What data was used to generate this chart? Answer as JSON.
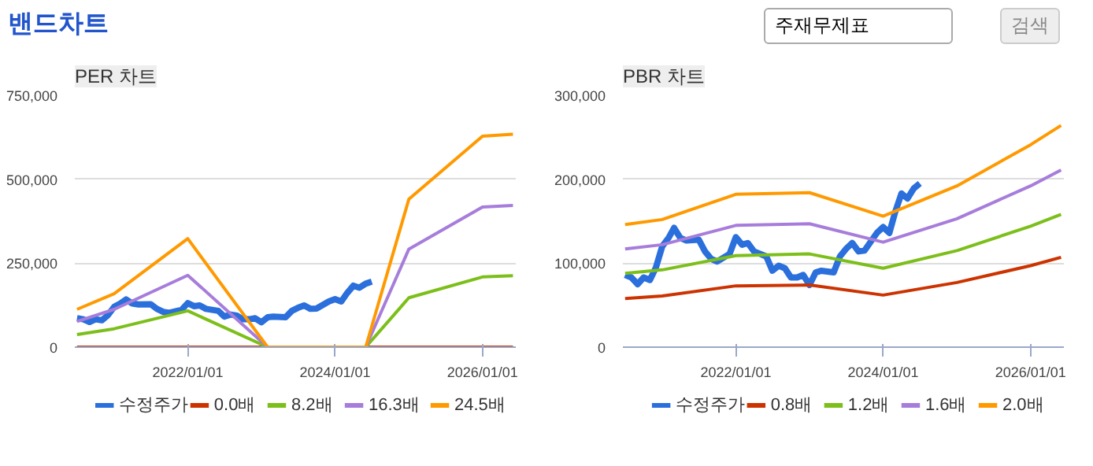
{
  "chart_data": [
    {
      "type": "other",
      "title": "밴드차트",
      "annotations": [
        "주재무제표",
        "검색"
      ]
    },
    {
      "type": "line",
      "title": "PER 차트",
      "xlim": [
        "2020-06-20",
        "2026-06-15"
      ],
      "ylim": [
        0,
        750000
      ],
      "xticks": [
        {
          "value": "2022-01-01",
          "label": "2022/01/01"
        },
        {
          "value": "2024-01-01",
          "label": "2024/01/01"
        },
        {
          "value": "2026-01-01",
          "label": "2026/01/01"
        }
      ],
      "yticks": [
        {
          "value": 0,
          "label": "0"
        },
        {
          "value": 250000,
          "label": "250,000"
        },
        {
          "value": 500000,
          "label": "500,000"
        },
        {
          "value": 750000,
          "label": "750,000"
        }
      ],
      "grid": "y",
      "legend": "bottom",
      "marker": "none",
      "line_style": "solid",
      "series": [
        {
          "name": "수정주가",
          "color": "#2a6fdb",
          "x": [
            "2020-07",
            "2020-08",
            "2020-09",
            "2020-10",
            "2020-11",
            "2020-12",
            "2021-01",
            "2021-02",
            "2021-03",
            "2021-04",
            "2021-05",
            "2021-07",
            "2021-08",
            "2021-09",
            "2021-10",
            "2021-12",
            "2022-01",
            "2022-02",
            "2022-03",
            "2022-04",
            "2022-06",
            "2022-07",
            "2022-08",
            "2022-09",
            "2022-10",
            "2022-11",
            "2022-12",
            "2023-01",
            "2023-02",
            "2023-03",
            "2023-05",
            "2023-06",
            "2023-07",
            "2023-08",
            "2023-09",
            "2023-10",
            "2023-12",
            "2024-01",
            "2024-02",
            "2024-03",
            "2024-04",
            "2024-05",
            "2024-06",
            "2024-07"
          ],
          "values": [
            86000,
            83000,
            75000,
            83000,
            80000,
            95000,
            120000,
            130000,
            142000,
            130000,
            127000,
            128000,
            114000,
            105000,
            102000,
            111000,
            131000,
            122000,
            124000,
            114000,
            108000,
            91000,
            97000,
            94000,
            83000,
            83000,
            86000,
            74000,
            89000,
            91000,
            89000,
            108000,
            117000,
            124000,
            114000,
            115000,
            136000,
            143000,
            136000,
            161000,
            183000,
            177000,
            189000,
            195000
          ]
        },
        {
          "name": "0.0배",
          "color": "#cc3300",
          "x": [
            "2020-07",
            "2021-01",
            "2022-01",
            "2023-02",
            "2024-06",
            "2025-01",
            "2026-01",
            "2026-06"
          ],
          "values": [
            0,
            0,
            0,
            0,
            0,
            0,
            0,
            0
          ]
        },
        {
          "name": "8.2배",
          "color": "#7cbf1a",
          "x": [
            "2020-07",
            "2021-01",
            "2022-01",
            "2023-02",
            "2024-06",
            "2025-01",
            "2026-01",
            "2026-06"
          ],
          "values": [
            37500,
            54700,
            108000,
            0,
            0,
            147000,
            209000,
            212500
          ]
        },
        {
          "name": "16.3배",
          "color": "#a77ddb",
          "x": [
            "2020-07",
            "2021-01",
            "2022-01",
            "2023-02",
            "2024-06",
            "2025-01",
            "2026-01",
            "2026-06"
          ],
          "values": [
            76600,
            112500,
            214000,
            0,
            0,
            292000,
            417000,
            422000
          ]
        },
        {
          "name": "24.5배",
          "color": "#ff9900",
          "x": [
            "2020-07",
            "2021-01",
            "2022-01",
            "2023-02",
            "2024-06",
            "2025-01",
            "2026-01",
            "2026-06"
          ],
          "values": [
            112500,
            159000,
            323000,
            0,
            0,
            440600,
            628000,
            634000
          ]
        }
      ]
    },
    {
      "type": "line",
      "title": "PBR 차트",
      "xlim": [
        "2020-06-20",
        "2026-06-15"
      ],
      "ylim": [
        0,
        300000
      ],
      "xticks": [
        {
          "value": "2022-01-01",
          "label": "2022/01/01"
        },
        {
          "value": "2024-01-01",
          "label": "2024/01/01"
        },
        {
          "value": "2026-01-01",
          "label": "2026/01/01"
        }
      ],
      "yticks": [
        {
          "value": 0,
          "label": "0"
        },
        {
          "value": 100000,
          "label": "100,000"
        },
        {
          "value": 200000,
          "label": "200,000"
        },
        {
          "value": 300000,
          "label": "300,000"
        }
      ],
      "grid": "y",
      "legend": "bottom",
      "marker": "none",
      "line_style": "solid",
      "series": [
        {
          "name": "수정주가",
          "color": "#2a6fdb",
          "x": [
            "2020-07",
            "2020-08",
            "2020-09",
            "2020-10",
            "2020-11",
            "2020-12",
            "2021-01",
            "2021-02",
            "2021-03",
            "2021-04",
            "2021-05",
            "2021-07",
            "2021-08",
            "2021-09",
            "2021-10",
            "2021-12",
            "2022-01",
            "2022-02",
            "2022-03",
            "2022-04",
            "2022-06",
            "2022-07",
            "2022-08",
            "2022-09",
            "2022-10",
            "2022-11",
            "2022-12",
            "2023-01",
            "2023-02",
            "2023-03",
            "2023-05",
            "2023-06",
            "2023-07",
            "2023-08",
            "2023-09",
            "2023-10",
            "2023-12",
            "2024-01",
            "2024-02",
            "2024-03",
            "2024-04",
            "2024-05",
            "2024-06",
            "2024-07"
          ],
          "values": [
            86000,
            83000,
            75000,
            83000,
            80000,
            95000,
            120000,
            130000,
            142000,
            130000,
            127000,
            128000,
            114000,
            105000,
            102000,
            111000,
            131000,
            122000,
            124000,
            114000,
            108000,
            91000,
            97000,
            94000,
            83000,
            83000,
            86000,
            74000,
            89000,
            91000,
            89000,
            108000,
            117000,
            124000,
            114000,
            115000,
            136000,
            143000,
            136000,
            161000,
            183000,
            177000,
            189000,
            195000
          ]
        },
        {
          "name": "0.8배",
          "color": "#cc3300",
          "x": [
            "2020-07",
            "2021-01",
            "2022-01",
            "2023-01",
            "2024-01",
            "2025-01",
            "2026-01",
            "2026-06"
          ],
          "values": [
            58000,
            61000,
            73000,
            74000,
            62000,
            77000,
            97000,
            107000
          ]
        },
        {
          "name": "1.2배",
          "color": "#7cbf1a",
          "x": [
            "2020-07",
            "2021-01",
            "2022-01",
            "2023-01",
            "2024-01",
            "2025-01",
            "2026-01",
            "2026-06"
          ],
          "values": [
            88000,
            92000,
            109000,
            111000,
            94000,
            115000,
            144000,
            158000
          ]
        },
        {
          "name": "1.6배",
          "color": "#a77ddb",
          "x": [
            "2020-07",
            "2021-01",
            "2022-01",
            "2023-01",
            "2024-01",
            "2025-01",
            "2026-01",
            "2026-06"
          ],
          "values": [
            117000,
            122000,
            145000,
            147000,
            125000,
            153000,
            192000,
            211000
          ]
        },
        {
          "name": "2.0배",
          "color": "#ff9900",
          "x": [
            "2020-07",
            "2021-01",
            "2022-01",
            "2023-01",
            "2024-01",
            "2025-01",
            "2026-01",
            "2026-06"
          ],
          "values": [
            146000,
            152000,
            182000,
            184000,
            156000,
            192000,
            241000,
            264000
          ]
        }
      ]
    }
  ]
}
